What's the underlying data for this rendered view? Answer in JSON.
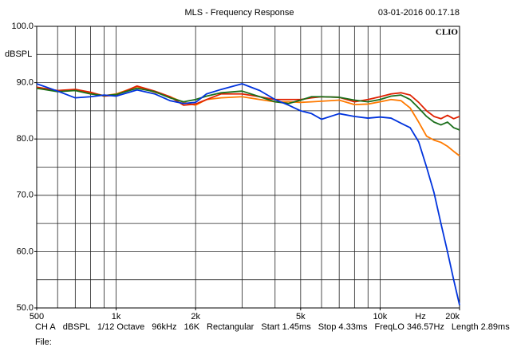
{
  "chart_data": {
    "type": "line",
    "title": "MLS - Frequency Response",
    "timestamp": "03-01-2016 00.17.18",
    "brand": "CLIO",
    "ylabel": "dBSPL",
    "xlabel": "Hz",
    "xscale": "log",
    "xlim": [
      500,
      20000
    ],
    "ylim": [
      50,
      100
    ],
    "xticks": [
      500,
      {
        "value": 1000,
        "label": "1k"
      },
      {
        "value": 2000,
        "label": "2k"
      },
      {
        "value": 5000,
        "label": "5k"
      },
      {
        "value": 10000,
        "label": "10k"
      },
      {
        "value": 20000,
        "label": "20k"
      }
    ],
    "yticks": [
      {
        "value": 50,
        "label": "50.0"
      },
      {
        "value": 60,
        "label": "60.0"
      },
      {
        "value": 70,
        "label": "70.0"
      },
      {
        "value": 80,
        "label": "80.0"
      },
      {
        "value": 90,
        "label": "90.0"
      },
      {
        "value": 100,
        "label": "100.0"
      }
    ],
    "xgrid": [
      600,
      700,
      800,
      900,
      1000,
      2000,
      3000,
      4000,
      5000,
      6000,
      7000,
      8000,
      9000,
      10000
    ],
    "ygrid": [
      55,
      60,
      65,
      70,
      75,
      80,
      85,
      90,
      95
    ],
    "x": [
      500,
      600,
      700,
      800,
      900,
      1000,
      1200,
      1400,
      1600,
      1800,
      2000,
      2200,
      2500,
      3000,
      3500,
      4000,
      4500,
      5000,
      5500,
      6000,
      7000,
      8000,
      9000,
      10000,
      11000,
      12000,
      13000,
      14000,
      15000,
      16000,
      17000,
      18000,
      19000,
      20000
    ],
    "series": [
      {
        "color": "#ff7a00",
        "values": [
          89.0,
          88.6,
          88.7,
          88.2,
          87.7,
          88.0,
          89.3,
          88.3,
          87.5,
          86.5,
          86.0,
          87.0,
          87.3,
          87.5,
          87.0,
          86.6,
          86.6,
          86.5,
          86.6,
          86.7,
          86.9,
          86.1,
          86.2,
          86.6,
          87.0,
          86.8,
          85.5,
          83.0,
          80.5,
          79.8,
          79.4,
          78.7,
          77.8,
          77.0
        ]
      },
      {
        "color": "#e02000",
        "values": [
          89.2,
          88.6,
          88.8,
          88.3,
          87.6,
          87.8,
          89.4,
          88.5,
          87.5,
          86.0,
          86.2,
          87.0,
          88.0,
          88.0,
          87.5,
          87.0,
          87.0,
          87.0,
          87.3,
          87.5,
          87.4,
          86.6,
          87.0,
          87.5,
          88.0,
          88.2,
          87.8,
          86.5,
          85.0,
          84.0,
          83.6,
          84.2,
          83.6,
          84.0
        ]
      },
      {
        "color": "#1a6e1a",
        "values": [
          89.0,
          88.4,
          88.6,
          88.0,
          87.7,
          87.9,
          89.0,
          88.4,
          87.3,
          86.6,
          87.0,
          87.6,
          88.2,
          88.5,
          87.5,
          86.6,
          86.3,
          86.9,
          87.5,
          87.5,
          87.4,
          86.9,
          86.6,
          87.0,
          87.6,
          87.8,
          87.0,
          85.5,
          84.0,
          83.0,
          82.5,
          83.0,
          82.0,
          81.6
        ]
      },
      {
        "color": "#0033dd",
        "values": [
          89.8,
          88.5,
          87.3,
          87.5,
          87.8,
          87.6,
          88.7,
          88.0,
          86.8,
          86.3,
          86.5,
          88.0,
          88.8,
          89.8,
          88.6,
          87.0,
          86.0,
          85.0,
          84.5,
          83.5,
          84.5,
          84.0,
          83.7,
          83.9,
          83.7,
          82.8,
          82.0,
          79.5,
          75.0,
          70.5,
          65.0,
          60.0,
          55.0,
          50.5
        ]
      }
    ],
    "info": [
      "CH A",
      "dBSPL",
      "1/12 Octave",
      "96kHz",
      "16K",
      "Rectangular",
      "Start 1.45ms",
      "Stop 4.33ms",
      "FreqLO 346.57Hz",
      "Length 2.89ms"
    ],
    "file_label": "File:"
  }
}
